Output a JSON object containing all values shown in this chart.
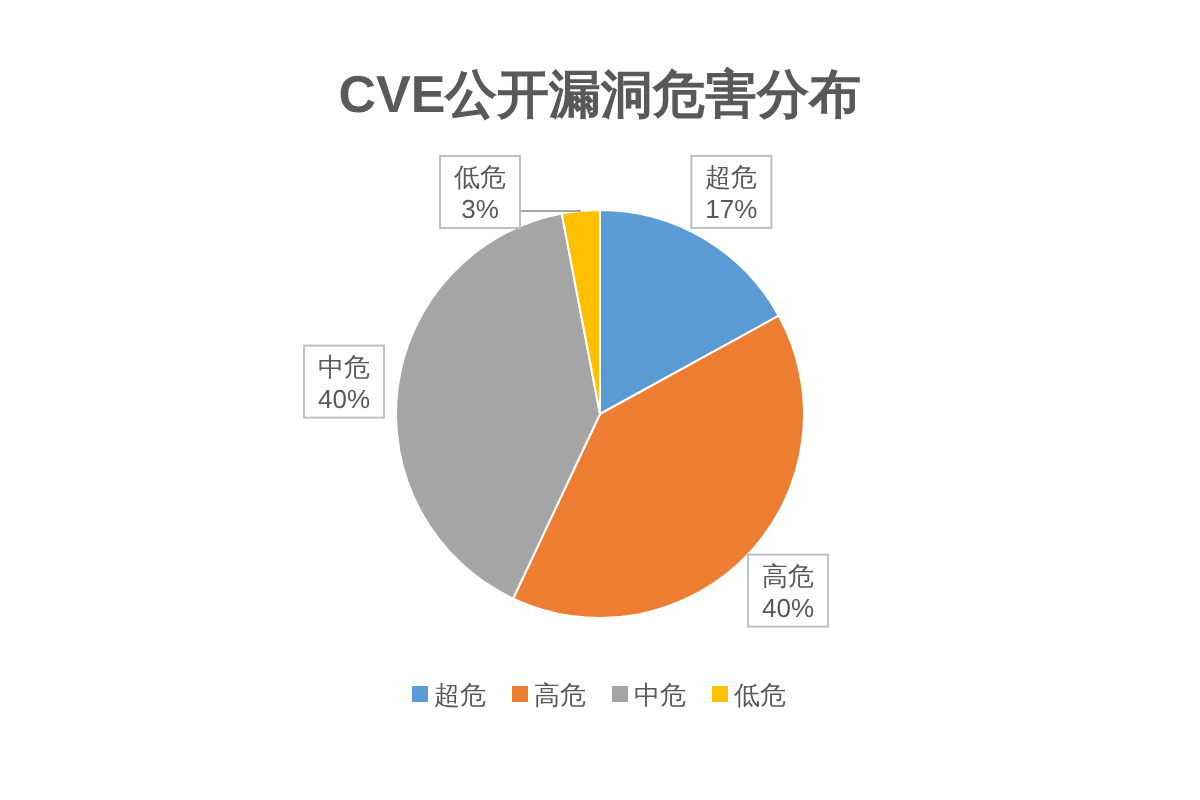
{
  "chart_data": {
    "type": "pie",
    "title": "CVE公开漏洞危害分布",
    "categories": [
      "超危",
      "高危",
      "中危",
      "低危"
    ],
    "values": [
      17,
      40,
      40,
      3
    ],
    "colors": [
      "#5b9bd5",
      "#ed7d31",
      "#a5a5a5",
      "#ffc000"
    ],
    "value_labels": [
      "17%",
      "40%",
      "40%",
      "3%"
    ],
    "legend": "bottom"
  }
}
